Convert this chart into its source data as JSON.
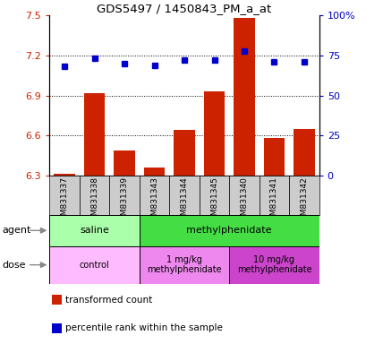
{
  "title": "GDS5497 / 1450843_PM_a_at",
  "samples": [
    "GSM831337",
    "GSM831338",
    "GSM831339",
    "GSM831343",
    "GSM831344",
    "GSM831345",
    "GSM831340",
    "GSM831341",
    "GSM831342"
  ],
  "bar_values": [
    6.31,
    6.92,
    6.49,
    6.36,
    6.64,
    6.93,
    7.48,
    6.58,
    6.65
  ],
  "dot_values": [
    68,
    73,
    70,
    69,
    72,
    72,
    78,
    71,
    71
  ],
  "ylim_left": [
    6.3,
    7.5
  ],
  "ylim_right": [
    0,
    100
  ],
  "yticks_left": [
    6.3,
    6.6,
    6.9,
    7.2,
    7.5
  ],
  "yticks_right": [
    0,
    25,
    50,
    75,
    100
  ],
  "ytick_labels_left": [
    "6.3",
    "6.6",
    "6.9",
    "7.2",
    "7.5"
  ],
  "ytick_labels_right": [
    "0",
    "25",
    "50",
    "75",
    "100%"
  ],
  "bar_color": "#cc2200",
  "dot_color": "#0000cc",
  "bar_bottom": 6.3,
  "agent_groups": [
    {
      "label": "saline",
      "start": 0,
      "end": 3,
      "color": "#aaffaa"
    },
    {
      "label": "methylphenidate",
      "start": 3,
      "end": 9,
      "color": "#44dd44"
    }
  ],
  "dose_groups": [
    {
      "label": "control",
      "start": 0,
      "end": 3,
      "color": "#ffbbff"
    },
    {
      "label": "1 mg/kg\nmethylphenidate",
      "start": 3,
      "end": 6,
      "color": "#ee88ee"
    },
    {
      "label": "10 mg/kg\nmethylphenidate",
      "start": 6,
      "end": 9,
      "color": "#cc44cc"
    }
  ],
  "legend_items": [
    {
      "color": "#cc2200",
      "label": "transformed count"
    },
    {
      "color": "#0000cc",
      "label": "percentile rank within the sample"
    }
  ],
  "grid_color": "black",
  "left_tick_color": "#cc2200",
  "right_tick_color": "#0000cc",
  "agent_label": "agent",
  "dose_label": "dose",
  "sample_box_color": "#cccccc",
  "arrow_color": "#888888"
}
